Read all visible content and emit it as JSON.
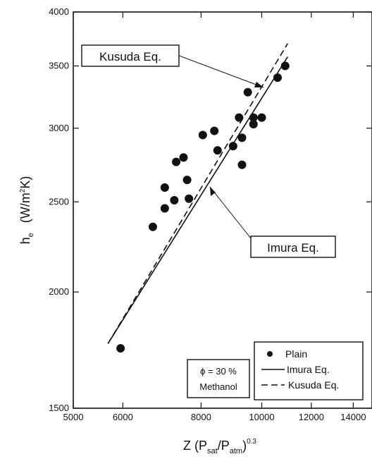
{
  "chart_data": {
    "type": "scatter",
    "x_scale": "log",
    "y_scale": "log",
    "xlim": [
      5000,
      15000
    ],
    "ylim": [
      1500,
      4000
    ],
    "x_ticks": [
      5000,
      6000,
      8000,
      10000,
      12000,
      14000
    ],
    "y_ticks": [
      1500,
      2000,
      2500,
      3000,
      3500,
      4000
    ],
    "x_tick_labels": [
      "5000",
      "6000",
      "8000",
      "10000",
      "12000",
      "14000"
    ],
    "y_tick_labels": [
      "1500",
      "2000",
      "2500",
      "3000",
      "3500",
      "4000"
    ],
    "xlabel": {
      "main": "Z (P",
      "sub1": "sat",
      "mid": "/P",
      "sub2": "atm",
      "close": ")",
      "sup": "0.3"
    },
    "ylabel": {
      "main": "h",
      "sub": "e",
      "units_open": "(W/m",
      "units_sup": "2",
      "units_close": "K)"
    },
    "series": [
      {
        "name": "Plain",
        "kind": "scatter",
        "points": [
          [
            5950,
            1740
          ],
          [
            6700,
            2350
          ],
          [
            7000,
            2460
          ],
          [
            7000,
            2590
          ],
          [
            7250,
            2510
          ],
          [
            7300,
            2760
          ],
          [
            7500,
            2790
          ],
          [
            7600,
            2640
          ],
          [
            7650,
            2520
          ],
          [
            8050,
            2950
          ],
          [
            8400,
            2980
          ],
          [
            8500,
            2840
          ],
          [
            9000,
            2870
          ],
          [
            9200,
            3080
          ],
          [
            9300,
            2740
          ],
          [
            9300,
            2930
          ],
          [
            9500,
            3280
          ],
          [
            9700,
            3080
          ],
          [
            9700,
            3030
          ],
          [
            10000,
            3080
          ],
          [
            10600,
            3400
          ],
          [
            10900,
            3500
          ]
        ]
      },
      {
        "name": "Imura Eq.",
        "kind": "line",
        "style": "solid",
        "points": [
          [
            5680,
            1760
          ],
          [
            11000,
            3580
          ]
        ]
      },
      {
        "name": "Kusuda Eq.",
        "kind": "line",
        "style": "dashed",
        "points": [
          [
            5680,
            1760
          ],
          [
            11000,
            3700
          ]
        ]
      }
    ],
    "annotations": [
      {
        "text": "Kusuda Eq.",
        "target_series": "Kusuda Eq."
      },
      {
        "text": "Imura Eq.",
        "target_series": "Imura Eq."
      }
    ],
    "note_lines": [
      "ϕ = 30 %",
      "Methanol"
    ],
    "legend": {
      "placement": "bottom-right",
      "entries": [
        {
          "label": "Plain",
          "marker": "dot"
        },
        {
          "label": "Imura Eq.",
          "marker": "solid-line"
        },
        {
          "label": "Kusuda Eq.",
          "marker": "dashed-line"
        }
      ]
    },
    "grid": false
  }
}
